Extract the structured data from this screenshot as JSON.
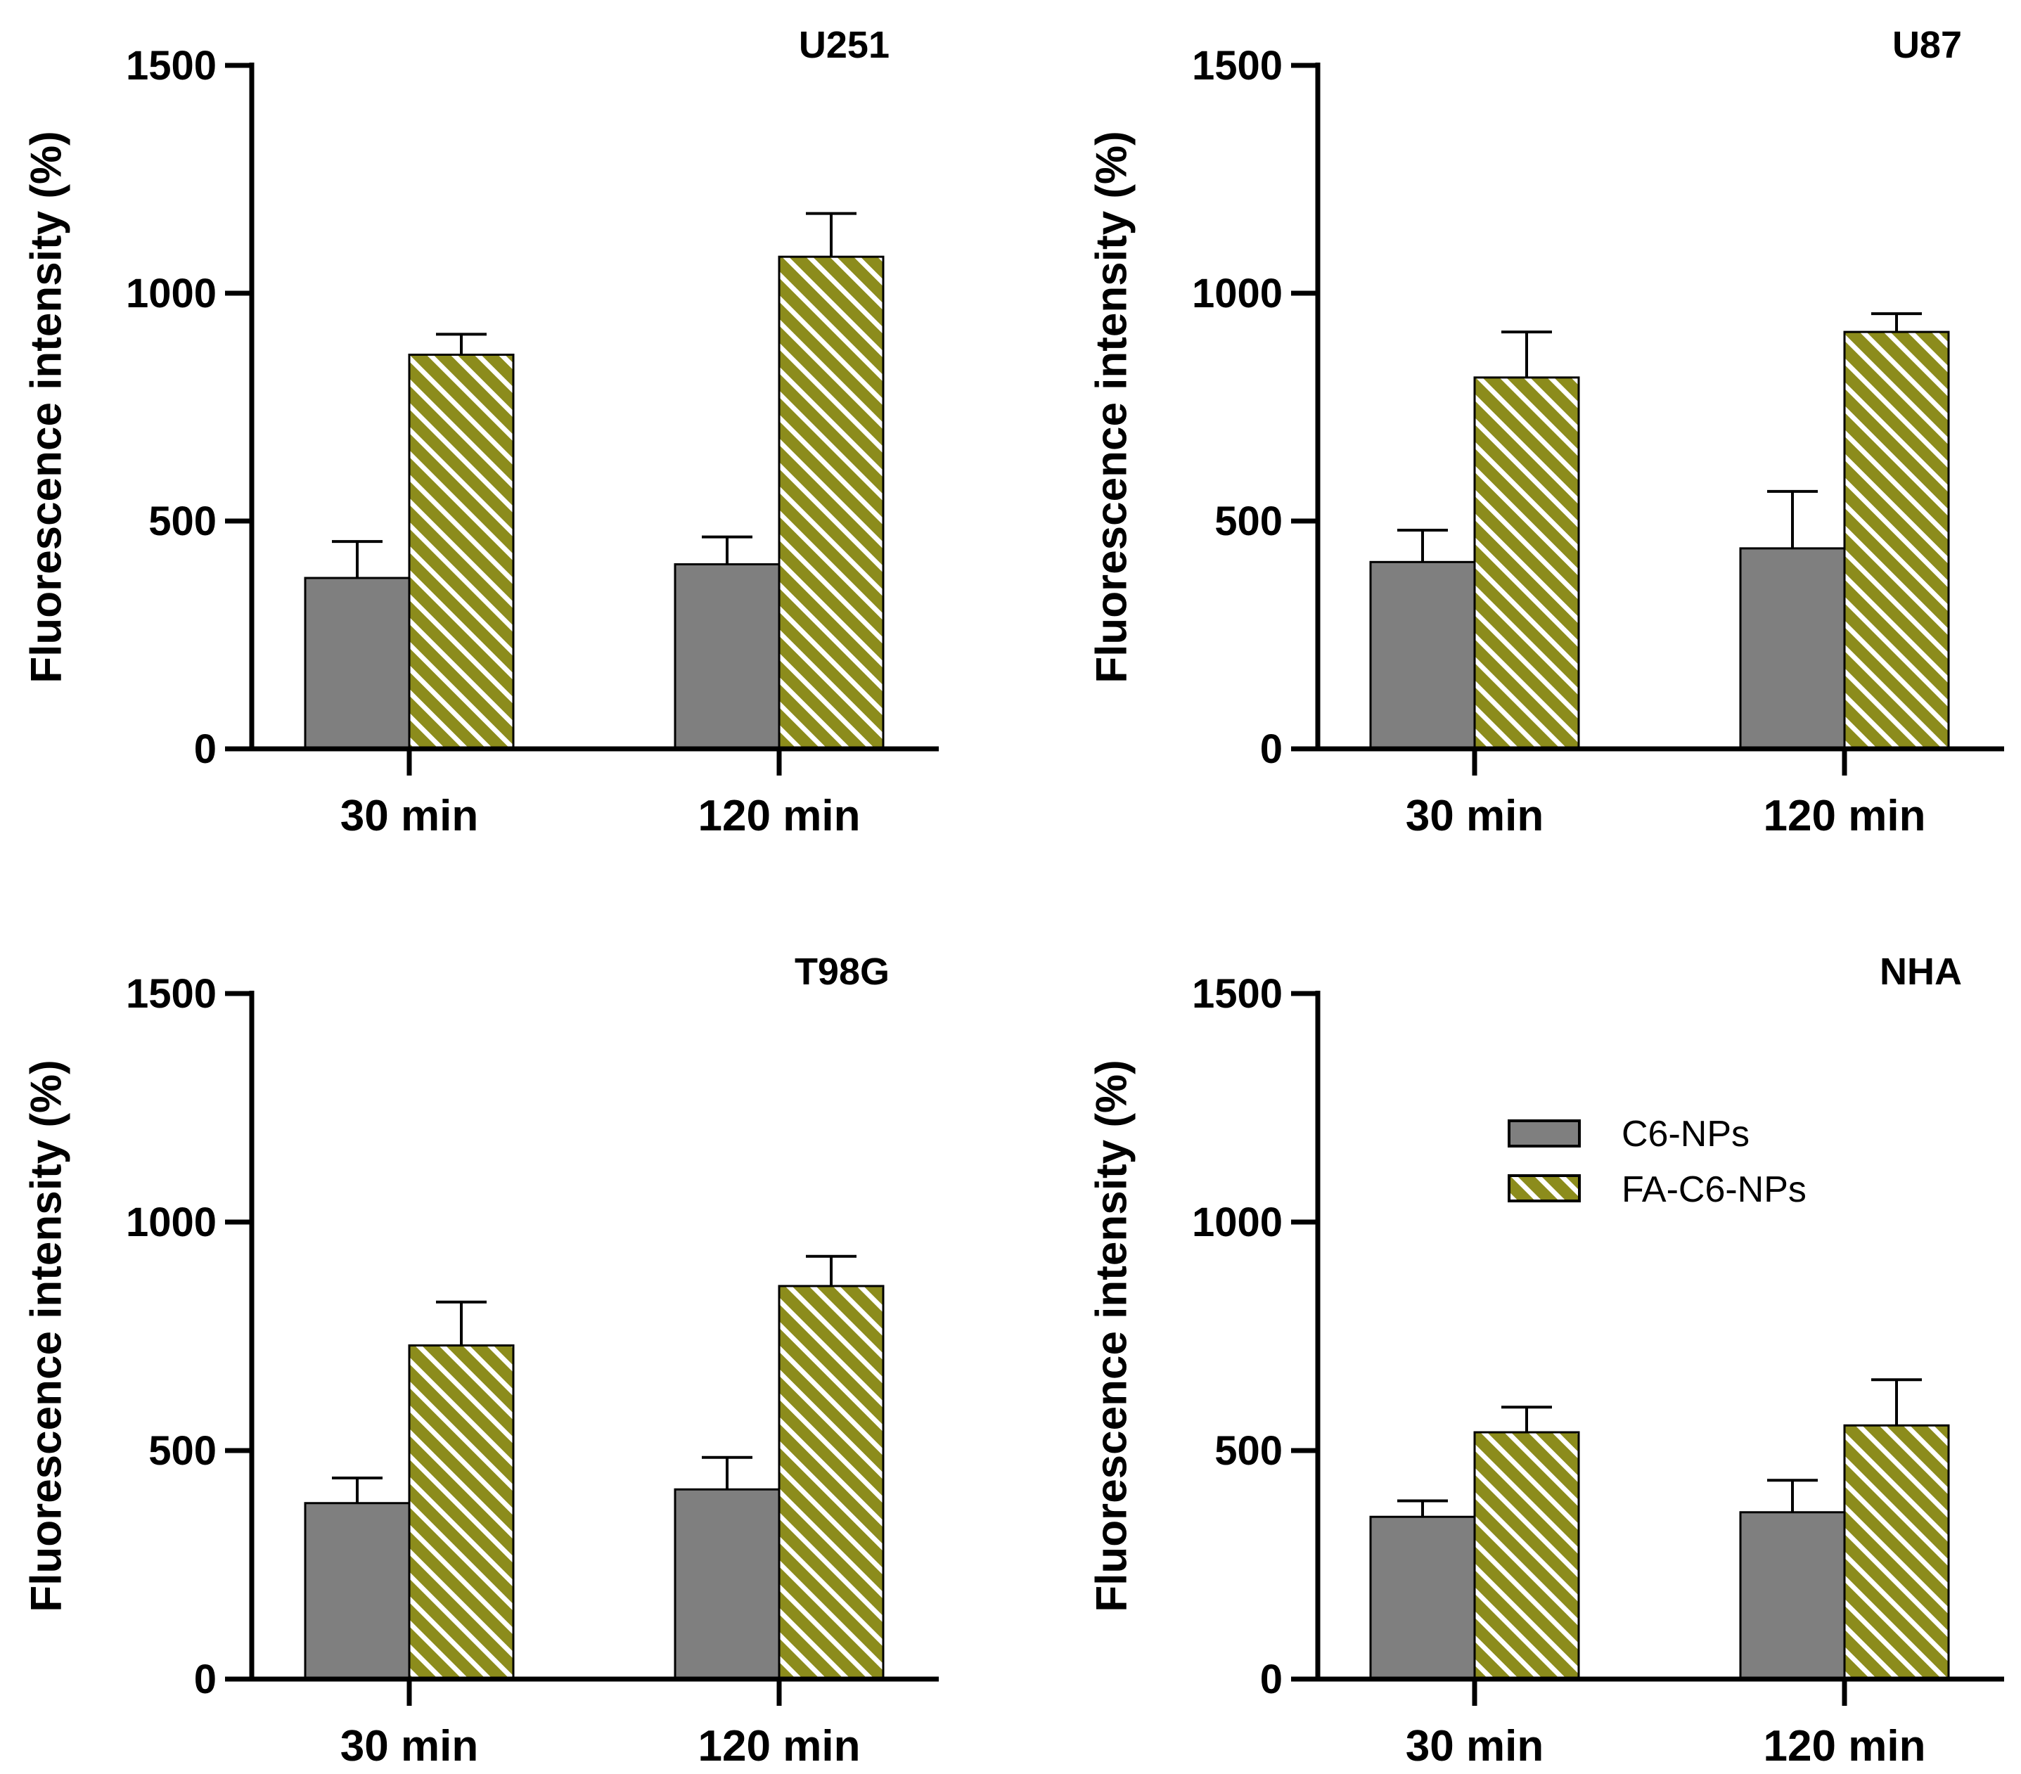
{
  "colors": {
    "c6": "#7f7f7f",
    "fa_fill": "#8c8c1c",
    "fa_stripe": "#ffffff",
    "axis": "#000000"
  },
  "chart_data": [
    {
      "type": "bar",
      "title": "U251",
      "ylabel": "Fluorescence intensity (%)",
      "ylim": [
        0,
        1500
      ],
      "yticks": [
        "0",
        "500",
        "1000",
        "1500"
      ],
      "categories": [
        "30 min",
        "120 min"
      ],
      "series": [
        {
          "name": "C6-NPs",
          "values": [
            375,
            405
          ],
          "errors": [
            80,
            60
          ]
        },
        {
          "name": "FA-C6-NPs",
          "values": [
            865,
            1080
          ],
          "errors": [
            45,
            95
          ]
        }
      ]
    },
    {
      "type": "bar",
      "title": "U87",
      "ylabel": "Fluorescence intensity (%)",
      "ylim": [
        0,
        1500
      ],
      "yticks": [
        "0",
        "500",
        "1000",
        "1500"
      ],
      "categories": [
        "30 min",
        "120 min"
      ],
      "series": [
        {
          "name": "C6-NPs",
          "values": [
            410,
            440
          ],
          "errors": [
            70,
            125
          ]
        },
        {
          "name": "FA-C6-NPs",
          "values": [
            815,
            915
          ],
          "errors": [
            100,
            40
          ]
        }
      ]
    },
    {
      "type": "bar",
      "title": "T98G",
      "ylabel": "Fluorescence intensity (%)",
      "ylim": [
        0,
        1500
      ],
      "yticks": [
        "0",
        "500",
        "1000",
        "1500"
      ],
      "categories": [
        "30 min",
        "120 min"
      ],
      "series": [
        {
          "name": "C6-NPs",
          "values": [
            385,
            415
          ],
          "errors": [
            55,
            70
          ]
        },
        {
          "name": "FA-C6-NPs",
          "values": [
            730,
            860
          ],
          "errors": [
            95,
            65
          ]
        }
      ]
    },
    {
      "type": "bar",
      "title": "NHA",
      "ylabel": "Fluorescence intensity (%)",
      "ylim": [
        0,
        1500
      ],
      "yticks": [
        "0",
        "500",
        "1000",
        "1500"
      ],
      "categories": [
        "30 min",
        "120 min"
      ],
      "series": [
        {
          "name": "C6-NPs",
          "values": [
            355,
            365
          ],
          "errors": [
            35,
            70
          ]
        },
        {
          "name": "FA-C6-NPs",
          "values": [
            540,
            555
          ],
          "errors": [
            55,
            100
          ]
        }
      ]
    }
  ],
  "legend": {
    "items": [
      {
        "label": "C6-NPs",
        "style": "solid"
      },
      {
        "label": "FA-C6-NPs",
        "style": "hatched"
      }
    ]
  }
}
